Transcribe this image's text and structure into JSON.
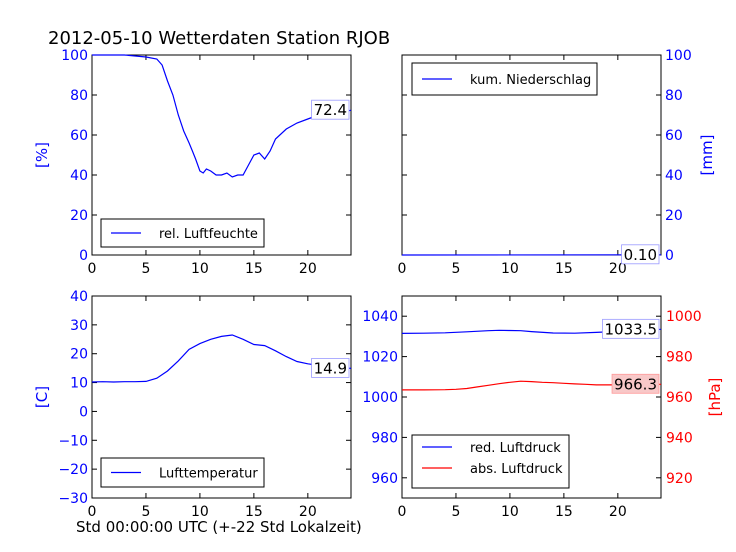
{
  "title": "2012-05-10 Wetterdaten Station RJOB",
  "xlabel": "Std 00:00:00 UTC (+-22 Std Lokalzeit)",
  "chart_data": [
    {
      "type": "line",
      "panel": "top-left",
      "ylabel": "[%]",
      "ylabel_color": "#0000ff",
      "xlim": [
        0,
        24
      ],
      "ylim": [
        0,
        100
      ],
      "xticks": [
        "0",
        "5",
        "10",
        "15",
        "20"
      ],
      "yticks": [
        "0",
        "20",
        "40",
        "60",
        "80",
        "100"
      ],
      "legend": "bottom-left",
      "series": [
        {
          "name": "rel. Luftfeuchte",
          "color": "#0000ff",
          "x": [
            0,
            1,
            2,
            3,
            4,
            5,
            6,
            6.5,
            7,
            7.5,
            8,
            8.5,
            9,
            9.3,
            9.6,
            10,
            10.3,
            10.6,
            11,
            11.5,
            12,
            12.5,
            13,
            13.5,
            14,
            14.5,
            15,
            15.5,
            16,
            16.5,
            17,
            18,
            19,
            20,
            21,
            22,
            23,
            24
          ],
          "y": [
            100,
            100,
            100,
            100,
            99.5,
            99,
            98,
            95,
            87,
            80,
            70,
            62,
            56,
            52,
            48,
            42,
            41,
            43,
            42,
            40,
            40,
            41,
            39,
            40,
            40,
            45,
            50,
            51,
            48,
            52,
            58,
            63,
            66,
            68,
            70,
            71,
            71,
            72.4
          ]
        }
      ],
      "annotation": "72.4"
    },
    {
      "type": "line",
      "panel": "top-right",
      "ylabel": "[mm]",
      "ylabel_color": "#0000ff",
      "xlim": [
        0,
        24
      ],
      "ylim": [
        0,
        100
      ],
      "xticks": [
        "0",
        "5",
        "10",
        "15",
        "20"
      ],
      "yticks": [
        "0",
        "20",
        "40",
        "60",
        "80",
        "100"
      ],
      "legend": "top-left",
      "series": [
        {
          "name": "kum. Niederschlag",
          "color": "#0000ff",
          "x": [
            0,
            24
          ],
          "y": [
            0,
            0.1
          ]
        }
      ],
      "annotation": "0.10"
    },
    {
      "type": "line",
      "panel": "bottom-left",
      "ylabel": "[C]",
      "ylabel_color": "#0000ff",
      "xlim": [
        0,
        24
      ],
      "ylim": [
        -30,
        40
      ],
      "xticks": [
        "0",
        "5",
        "10",
        "15",
        "20"
      ],
      "yticks": [
        "−30",
        "−20",
        "−10",
        "0",
        "10",
        "20",
        "30",
        "40"
      ],
      "legend": "bottom-left",
      "series": [
        {
          "name": "Lufttemperatur",
          "color": "#0000ff",
          "x": [
            0,
            1,
            2,
            3,
            4,
            5,
            6,
            7,
            8,
            9,
            10,
            11,
            12,
            13,
            14,
            15,
            16,
            17,
            18,
            19,
            20,
            21,
            22,
            23,
            24
          ],
          "y": [
            10.2,
            10.3,
            10.2,
            10.3,
            10.3,
            10.4,
            11.5,
            14,
            17.5,
            21.5,
            23.5,
            25,
            26,
            26.5,
            25,
            23.2,
            22.8,
            21,
            19,
            17.3,
            16.5,
            16,
            15.6,
            15.2,
            14.9
          ]
        }
      ],
      "annotation": "14.9"
    },
    {
      "type": "line",
      "panel": "bottom-right",
      "ylabel": "[hPa]",
      "ylabel_color": "#ff0000",
      "xlim": [
        0,
        24
      ],
      "ylim": [
        950,
        1050
      ],
      "ylim_right": [
        910,
        1010
      ],
      "xticks": [
        "0",
        "5",
        "10",
        "15",
        "20"
      ],
      "yticks": [
        "960",
        "980",
        "1000",
        "1020",
        "1040"
      ],
      "yticks_right": [
        "920",
        "940",
        "960",
        "980",
        "1000"
      ],
      "legend": "bottom-left",
      "series": [
        {
          "name": "red. Luftdruck",
          "color": "#0000ff",
          "axis": "left",
          "x": [
            0,
            2,
            4,
            6,
            8,
            9,
            10,
            11,
            12,
            14,
            16,
            18,
            20,
            22,
            24
          ],
          "y": [
            1031.5,
            1031.6,
            1031.8,
            1032.3,
            1032.8,
            1033,
            1032.9,
            1032.8,
            1032.4,
            1031.7,
            1031.6,
            1032,
            1032.5,
            1033,
            1033.5
          ]
        },
        {
          "name": "abs. Luftdruck",
          "color": "#ff0000",
          "axis": "right",
          "x": [
            0,
            2,
            4,
            5,
            6,
            7,
            8,
            9,
            10,
            11,
            12,
            13,
            14,
            15,
            16,
            17,
            18,
            19,
            20,
            21,
            22,
            23,
            24
          ],
          "y": [
            963.5,
            963.5,
            963.6,
            963.8,
            964.2,
            965,
            965.8,
            966.6,
            967.3,
            967.8,
            967.6,
            967.3,
            967.1,
            966.8,
            966.5,
            966.3,
            966,
            966,
            966,
            966.1,
            966.2,
            966.3,
            966.3
          ]
        }
      ],
      "annotation": "1033.5",
      "annotation_right": "966.3"
    }
  ]
}
